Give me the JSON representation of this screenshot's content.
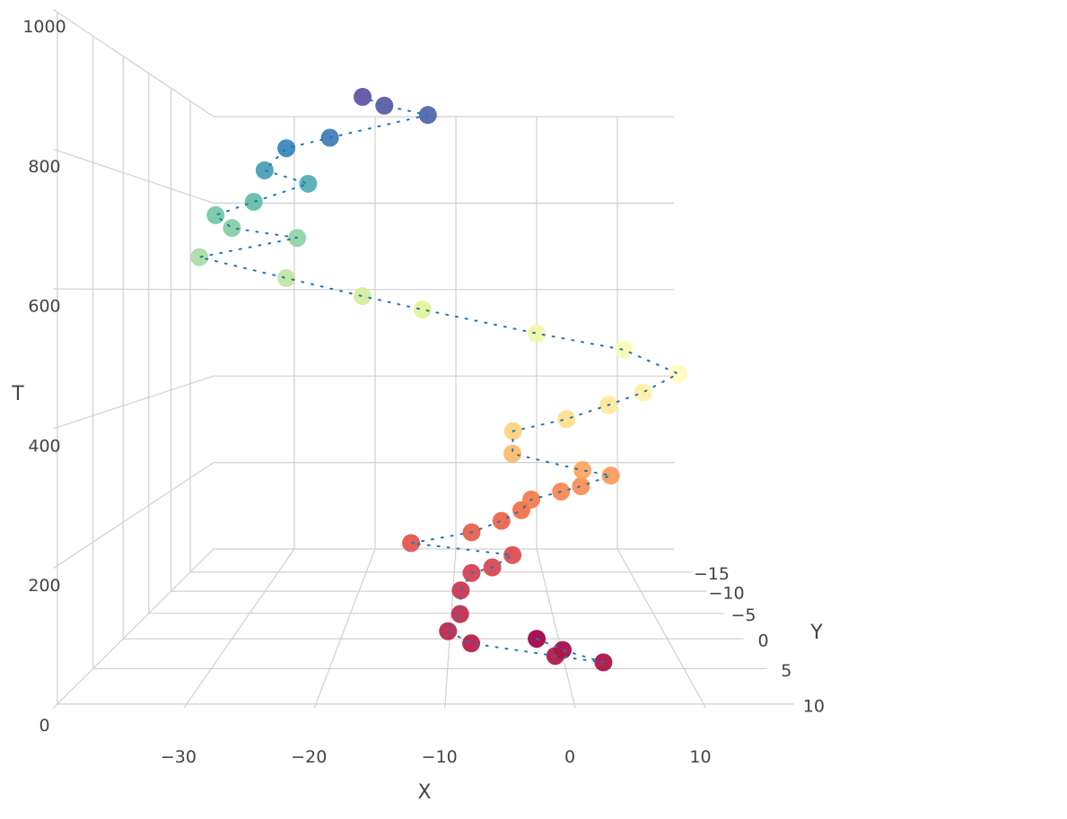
{
  "chart_data": {
    "type": "scatter3d",
    "x_label": "X",
    "y_label": "Y",
    "z_label": "T",
    "x": [
      -2,
      0,
      3,
      -1,
      -8,
      -10,
      -9,
      -9,
      -8,
      -6,
      -4,
      -14,
      -8,
      -5,
      -3,
      -2,
      1,
      3,
      6,
      3,
      -4,
      -4,
      1,
      5,
      8,
      11,
      6,
      -2,
      -12.5,
      -18,
      -25,
      -33,
      -24,
      -30,
      -31.5,
      -28,
      -23,
      -27,
      -25,
      -21,
      -12,
      -16,
      -18
    ],
    "y": [
      0,
      3,
      6,
      6,
      5,
      4,
      2,
      -1,
      -3,
      -3,
      -4,
      -5,
      -5,
      -6,
      -6,
      -6,
      -6,
      -6,
      -6,
      -5,
      -4,
      -3,
      -2,
      -2,
      -1,
      0,
      0,
      0,
      0,
      0,
      0,
      0,
      0,
      0,
      0,
      0,
      0,
      0,
      0,
      0,
      0,
      0,
      0
    ],
    "t": [
      0,
      10,
      20,
      30,
      40,
      50,
      60,
      75,
      90,
      100,
      115,
      130,
      150,
      165,
      185,
      205,
      220,
      230,
      250,
      265,
      300,
      345,
      370,
      395,
      420,
      455,
      496,
      524,
      565,
      588,
      619,
      655,
      688,
      705,
      727,
      750,
      781,
      804,
      842,
      860,
      899,
      915,
      930
    ],
    "xlim": [
      -40,
      17
    ],
    "ylim": [
      -22,
      10.5
    ],
    "zlim": [
      0,
      1000
    ],
    "xticks": [
      {
        "value": -30,
        "label": "−30"
      },
      {
        "value": -20,
        "label": "−20"
      },
      {
        "value": -10,
        "label": "−10"
      },
      0,
      10
    ],
    "yticks": [
      {
        "value": -15,
        "label": "−15"
      },
      {
        "value": -10,
        "label": "−10"
      },
      {
        "value": -5,
        "label": "−5"
      },
      0,
      5,
      10
    ],
    "zticks": [
      0,
      200,
      400,
      600,
      800,
      1000
    ],
    "colorscale": [
      "#9e0142",
      "#d53e4f",
      "#f46d43",
      "#fdae61",
      "#fee08b",
      "#ffffbf",
      "#e6f598",
      "#abdda4",
      "#66c2a5",
      "#3288bd",
      "#5e4fa2"
    ],
    "line_color": "#1f77b4",
    "grid": true
  }
}
